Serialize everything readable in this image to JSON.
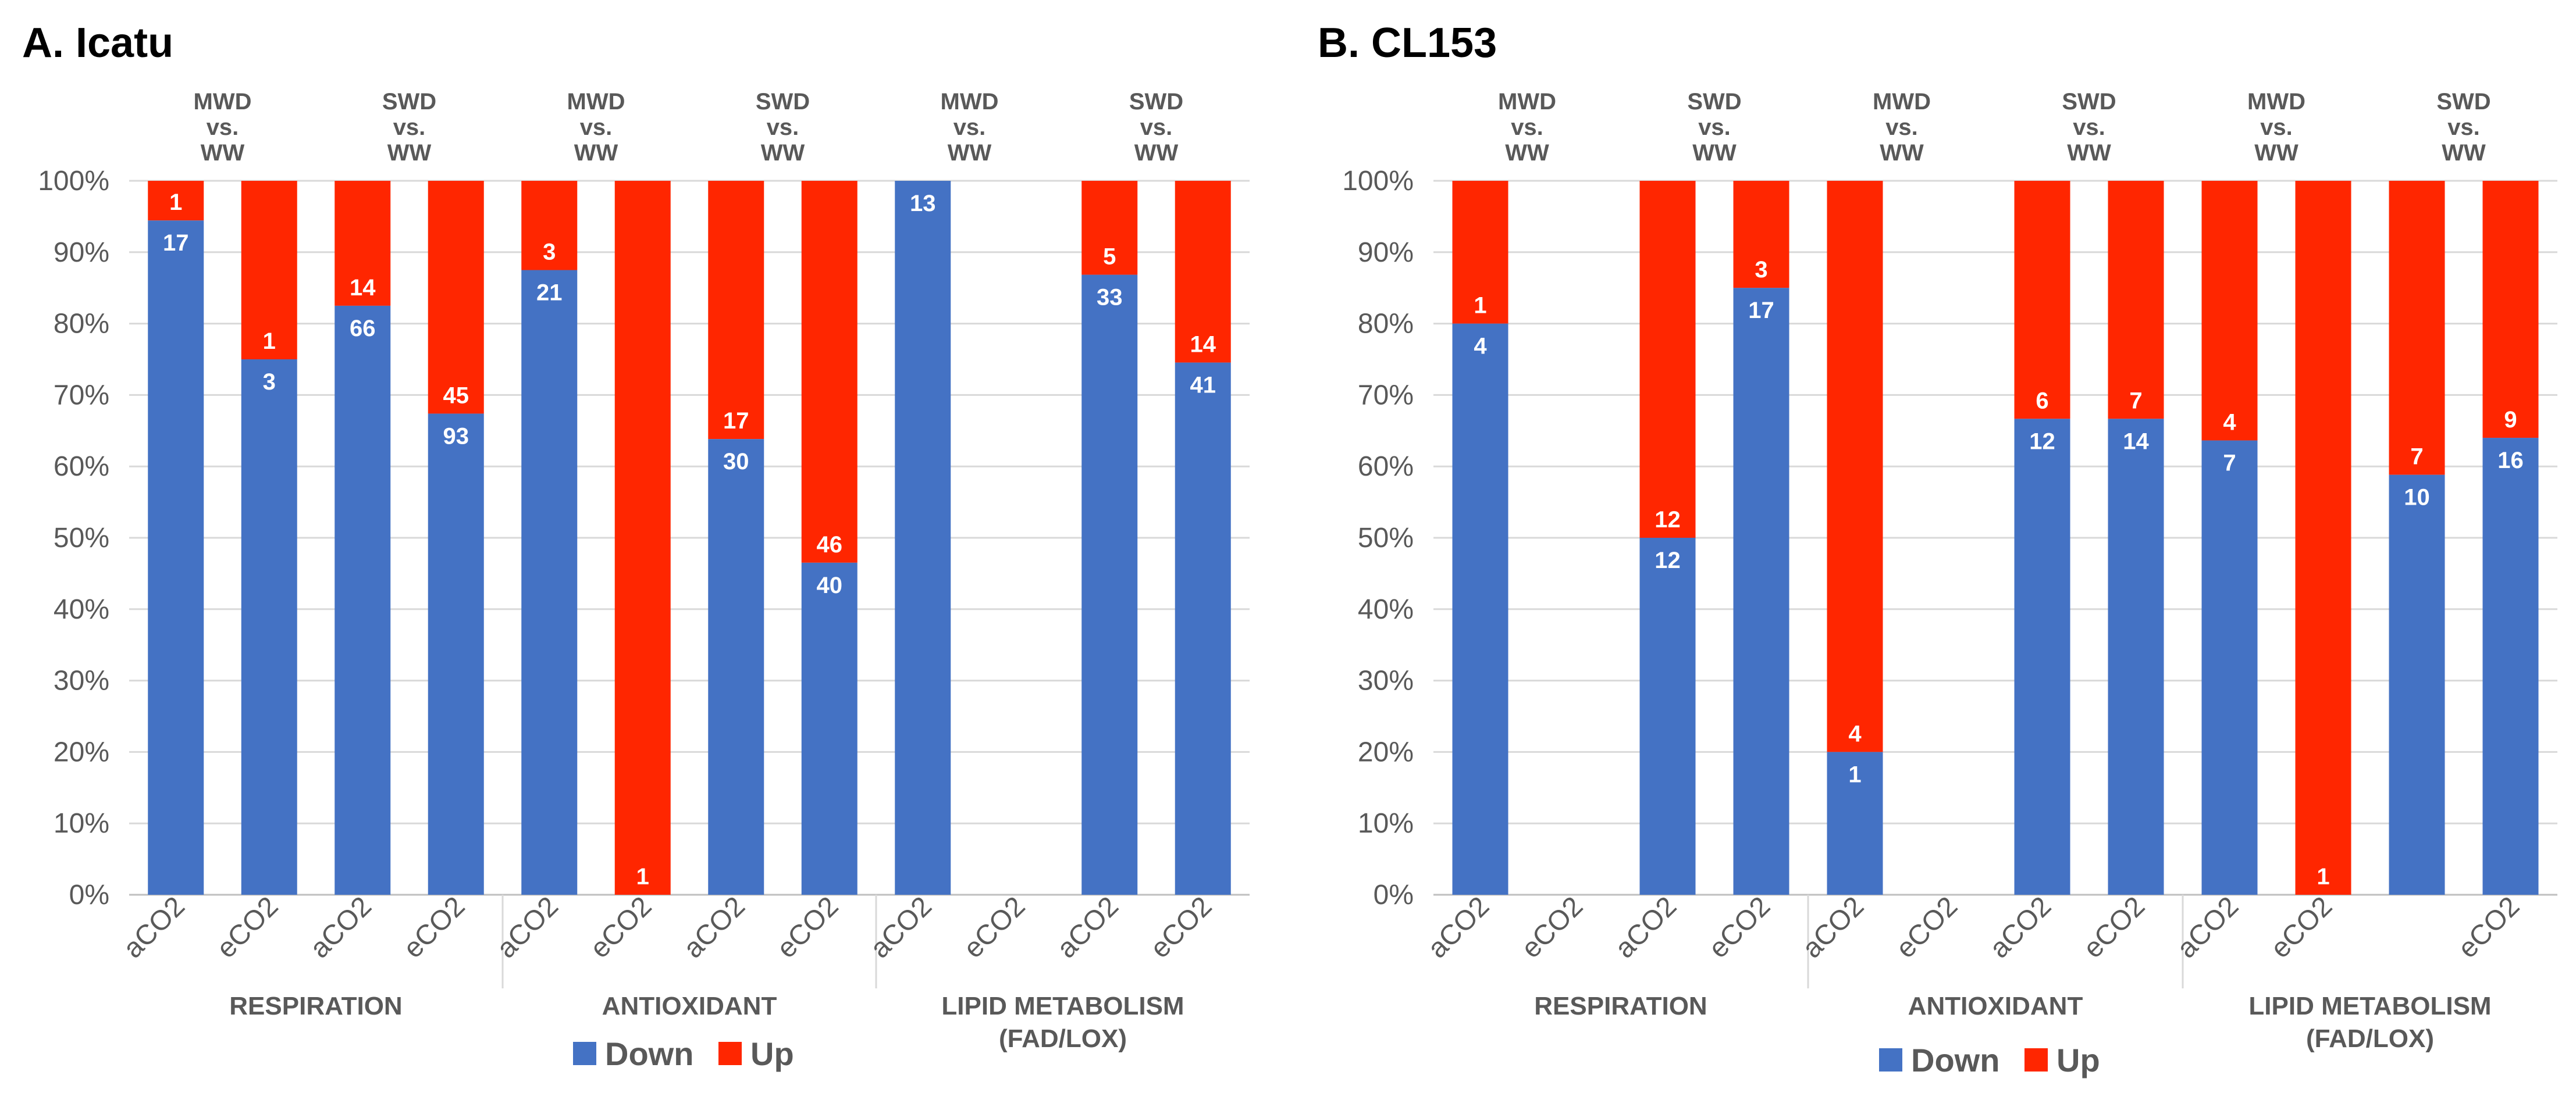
{
  "colors": {
    "down": "#4472C4",
    "up": "#FF2600",
    "grid": "#D9D9D9",
    "text": "#595959"
  },
  "chart_data": [
    {
      "type": "bar",
      "stacked": "percent",
      "title": "A. Icatu",
      "ylim": [
        0,
        100
      ],
      "yticks": [
        "0%",
        "10%",
        "20%",
        "30%",
        "40%",
        "50%",
        "60%",
        "70%",
        "80%",
        "90%",
        "100%"
      ],
      "legend": {
        "placement": "bottom",
        "entries": [
          "Down",
          "Up"
        ]
      },
      "comparison_line2": "vs.",
      "groups": [
        {
          "label": [
            "RESPIRATION"
          ],
          "subgroups": [
            {
              "comparison": [
                "MWD",
                "WW"
              ],
              "bars": [
                {
                  "category": "aCO2",
                  "down": 17,
                  "up": 1
                },
                {
                  "category": "eCO2",
                  "down": 3,
                  "up": 1
                }
              ]
            },
            {
              "comparison": [
                "SWD",
                "WW"
              ],
              "bars": [
                {
                  "category": "aCO2",
                  "down": 66,
                  "up": 14
                },
                {
                  "category": "eCO2",
                  "down": 93,
                  "up": 45
                }
              ]
            }
          ]
        },
        {
          "label": [
            "ANTIOXIDANT"
          ],
          "subgroups": [
            {
              "comparison": [
                "MWD",
                "WW"
              ],
              "bars": [
                {
                  "category": "aCO2",
                  "down": 21,
                  "up": 3
                },
                {
                  "category": "eCO2",
                  "down": 0,
                  "up": 1
                }
              ]
            },
            {
              "comparison": [
                "SWD",
                "WW"
              ],
              "bars": [
                {
                  "category": "aCO2",
                  "down": 30,
                  "up": 17
                },
                {
                  "category": "eCO2",
                  "down": 40,
                  "up": 46
                }
              ]
            }
          ]
        },
        {
          "label": [
            "LIPID METABOLISM",
            "(FAD/LOX)"
          ],
          "subgroups": [
            {
              "comparison": [
                "MWD",
                "WW"
              ],
              "bars": [
                {
                  "category": "aCO2",
                  "down": 13,
                  "up": 0
                },
                {
                  "category": "eCO2",
                  "down": 0,
                  "up": 0
                }
              ]
            },
            {
              "comparison": [
                "SWD",
                "WW"
              ],
              "bars": [
                {
                  "category": "aCO2",
                  "down": 33,
                  "up": 5
                },
                {
                  "category": "eCO2",
                  "down": 41,
                  "up": 14
                }
              ]
            }
          ]
        }
      ]
    },
    {
      "type": "bar",
      "stacked": "percent",
      "title": "B. CL153",
      "ylim": [
        0,
        100
      ],
      "yticks": [
        "0%",
        "10%",
        "20%",
        "30%",
        "40%",
        "50%",
        "60%",
        "70%",
        "80%",
        "90%",
        "100%"
      ],
      "legend": {
        "placement": "bottom",
        "entries": [
          "Down",
          "Up"
        ]
      },
      "comparison_line2": "vs.",
      "groups": [
        {
          "label": [
            "RESPIRATION"
          ],
          "subgroups": [
            {
              "comparison": [
                "MWD",
                "WW"
              ],
              "bars": [
                {
                  "category": "aCO2",
                  "down": 4,
                  "up": 1
                },
                {
                  "category": "eCO2",
                  "down": 0,
                  "up": 0
                }
              ]
            },
            {
              "comparison": [
                "SWD",
                "WW"
              ],
              "bars": [
                {
                  "category": "aCO2",
                  "down": 12,
                  "up": 12
                },
                {
                  "category": "eCO2",
                  "down": 17,
                  "up": 3
                }
              ]
            }
          ]
        },
        {
          "label": [
            "ANTIOXIDANT"
          ],
          "subgroups": [
            {
              "comparison": [
                "MWD",
                "WW"
              ],
              "bars": [
                {
                  "category": "aCO2",
                  "down": 1,
                  "up": 4
                },
                {
                  "category": "eCO2",
                  "down": 0,
                  "up": 0
                }
              ]
            },
            {
              "comparison": [
                "SWD",
                "WW"
              ],
              "bars": [
                {
                  "category": "aCO2",
                  "down": 12,
                  "up": 6
                },
                {
                  "category": "eCO2",
                  "down": 14,
                  "up": 7
                }
              ]
            }
          ]
        },
        {
          "label": [
            "LIPID METABOLISM",
            "(FAD/LOX)"
          ],
          "subgroups": [
            {
              "comparison": [
                "MWD",
                "WW"
              ],
              "bars": [
                {
                  "category": "aCO2",
                  "down": 7,
                  "up": 4
                },
                {
                  "category": "eCO2",
                  "down": 0,
                  "up": 1
                }
              ]
            },
            {
              "comparison": [
                "SWD",
                "WW"
              ],
              "bars": [
                {
                  "category": "",
                  "down": 10,
                  "up": 7
                },
                {
                  "category": "eCO2",
                  "down": 16,
                  "up": 9
                }
              ]
            }
          ]
        }
      ]
    }
  ]
}
